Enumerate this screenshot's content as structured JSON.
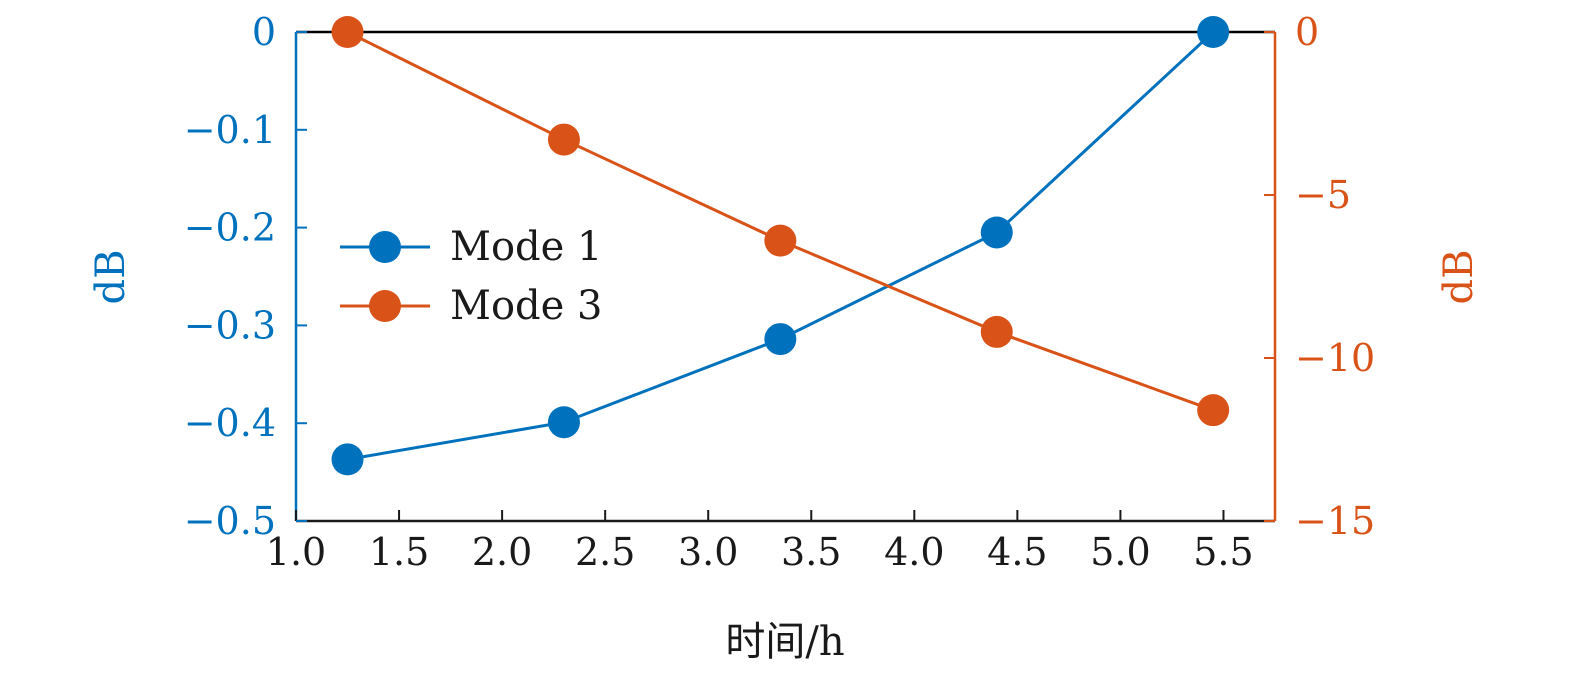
{
  "chart_data": {
    "type": "line",
    "xlabel": "时间/h",
    "ylabel_left": "dB",
    "ylabel_right": "dB",
    "x": [
      1.25,
      2.3,
      3.35,
      4.4,
      5.45
    ],
    "xlim": [
      1.0,
      5.75
    ],
    "xticks": [
      1.0,
      1.5,
      2.0,
      2.5,
      3.0,
      3.5,
      4.0,
      4.5,
      5.0,
      5.5
    ],
    "xtick_labels": [
      "1.0",
      "1.5",
      "2.0",
      "2.5",
      "3.0",
      "3.5",
      "4.0",
      "4.5",
      "5.0",
      "5.5"
    ],
    "ylim_left": [
      -0.5,
      0
    ],
    "yticks_left": [
      0,
      -0.1,
      -0.2,
      -0.3,
      -0.4,
      -0.5
    ],
    "ytick_labels_left": [
      "0",
      "−0.1",
      "−0.2",
      "−0.3",
      "−0.4",
      "−0.5"
    ],
    "ylim_right": [
      -15,
      0
    ],
    "yticks_right": [
      0,
      -5,
      -10,
      -15
    ],
    "ytick_labels_right": [
      "0",
      "−5",
      "−10",
      "−15"
    ],
    "grid": false,
    "legend_position": "center-left",
    "series": [
      {
        "name": "Mode 1",
        "axis": "left",
        "color": "#0072BD",
        "values": [
          -0.437,
          -0.399,
          -0.314,
          -0.205,
          0.0
        ]
      },
      {
        "name": "Mode 3",
        "axis": "right",
        "color": "#D95319",
        "values": [
          0.0,
          -3.3,
          -6.4,
          -9.2,
          -11.6
        ]
      }
    ]
  }
}
